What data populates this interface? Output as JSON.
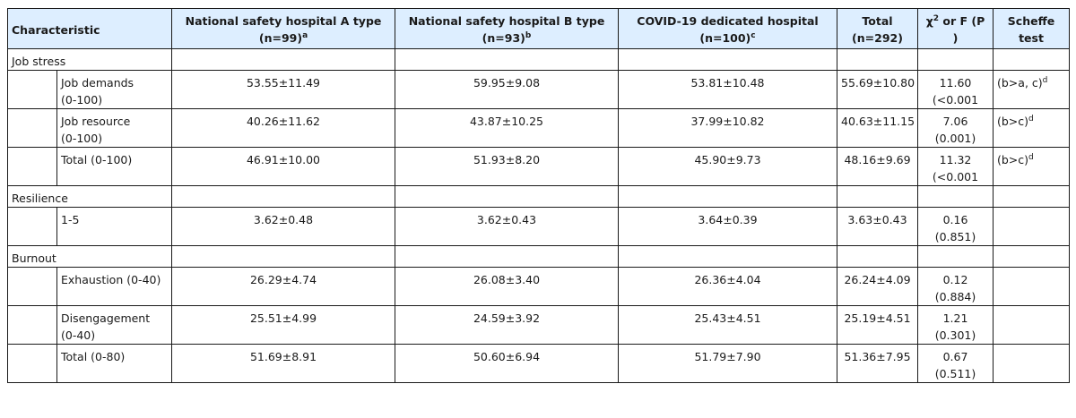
{
  "table": {
    "headers": {
      "characteristic": "Characteristic",
      "hosp_a": "National safety hospital A type",
      "hosp_a_n": "(n=99)",
      "hosp_a_sup": "a",
      "hosp_b": "National safety hospital B type",
      "hosp_b_n": "(n=93)",
      "hosp_b_sup": "b",
      "covid": "COVID-19 dedicated hospital",
      "covid_n": "(n=100)",
      "covid_sup": "c",
      "total": "Total",
      "total_n": "(n=292)",
      "chi_prefix": "χ",
      "chi_sup": "2",
      "chi_rest": " or F (P",
      "chi_close": ")",
      "scheffe": "Scheffe",
      "scheffe2": "test"
    },
    "groups": [
      {
        "label": "Job stress",
        "rows": [
          {
            "label1": "Job demands",
            "label2": "(0-100)",
            "a": "53.55±11.49",
            "b": "59.95±9.08",
            "c": "53.81±10.48",
            "total": "55.69±10.80",
            "stat1": "11.60",
            "stat2": "(<0.001",
            "scheffe": "(b>a, c)",
            "scheffe_sup": "d"
          },
          {
            "label1": "Job resource",
            "label2": "(0-100)",
            "a": "40.26±11.62",
            "b": "43.87±10.25",
            "c": "37.99±10.82",
            "total": "40.63±11.15",
            "stat1": "7.06",
            "stat2": "(0.001)",
            "scheffe": "(b>c)",
            "scheffe_sup": "d"
          },
          {
            "label1": "Total (0-100)",
            "label2": "",
            "a": "46.91±10.00",
            "b": "51.93±8.20",
            "c": "45.90±9.73",
            "total": "48.16±9.69",
            "stat1": "11.32",
            "stat2": "(<0.001",
            "scheffe": "(b>c)",
            "scheffe_sup": "d"
          }
        ]
      },
      {
        "label": "Resilience",
        "rows": [
          {
            "label1": "1-5",
            "label2": "",
            "a": "3.62±0.48",
            "b": "3.62±0.43",
            "c": "3.64±0.39",
            "total": "3.63±0.43",
            "stat1": "0.16",
            "stat2": "(0.851)",
            "scheffe": "",
            "scheffe_sup": ""
          }
        ]
      },
      {
        "label": "Burnout",
        "rows": [
          {
            "label1": "Exhaustion (0-40)",
            "label2": "",
            "a": "26.29±4.74",
            "b": "26.08±3.40",
            "c": "26.36±4.04",
            "total": "26.24±4.09",
            "stat1": "0.12",
            "stat2": "(0.884)",
            "scheffe": "",
            "scheffe_sup": ""
          },
          {
            "label1": "Disengagement",
            "label2": "(0-40)",
            "a": "25.51±4.99",
            "b": "24.59±3.92",
            "c": "25.43±4.51",
            "total": "25.19±4.51",
            "stat1": "1.21",
            "stat2": "(0.301)",
            "scheffe": "",
            "scheffe_sup": ""
          },
          {
            "label1": "Total (0-80)",
            "label2": "",
            "a": "51.69±8.91",
            "b": "50.60±6.94",
            "c": "51.79±7.90",
            "total": "51.36±7.95",
            "stat1": "0.67",
            "stat2": "(0.511)",
            "scheffe": "",
            "scheffe_sup": ""
          }
        ]
      }
    ]
  }
}
